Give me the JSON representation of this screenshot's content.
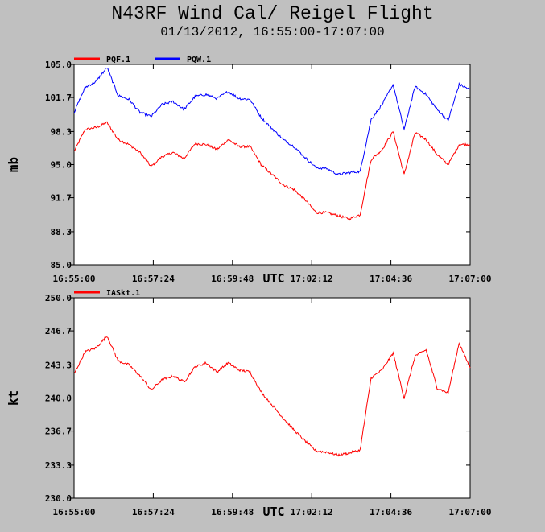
{
  "title": "N43RF Wind Cal/ Reigel Flight",
  "subtitle": "01/13/2012, 16:55:00-17:07:00",
  "colors": {
    "background": "#c0c0c0",
    "plot_bg": "#ffffff",
    "red": "#ff0000",
    "blue": "#0000ff"
  },
  "chart_data": [
    {
      "type": "line",
      "ylabel": "mb",
      "xlabel": "UTC",
      "ylim": [
        85.0,
        105.0
      ],
      "yticks": [
        "85.0",
        "88.3",
        "91.7",
        "95.0",
        "98.3",
        "101.7",
        "105.0"
      ],
      "xticks": [
        "16:55:00",
        "16:57:24",
        "16:59:48",
        "17:02:12",
        "17:04:36",
        "17:07:00"
      ],
      "x": [
        "16:55:00",
        "16:55:20",
        "16:55:40",
        "16:56:00",
        "16:56:20",
        "16:56:40",
        "16:57:00",
        "16:57:20",
        "16:57:40",
        "16:58:00",
        "16:58:20",
        "16:58:40",
        "16:59:00",
        "16:59:20",
        "16:59:40",
        "17:00:00",
        "17:00:20",
        "17:00:40",
        "17:01:00",
        "17:01:20",
        "17:01:40",
        "17:02:00",
        "17:02:20",
        "17:02:40",
        "17:03:00",
        "17:03:20",
        "17:03:40",
        "17:04:00",
        "17:04:20",
        "17:04:40",
        "17:05:00",
        "17:05:20",
        "17:05:40",
        "17:06:00",
        "17:06:20",
        "17:06:40",
        "17:07:00"
      ],
      "legend_placement": "top-left",
      "series": [
        {
          "name": "PQF.1",
          "color": "#ff0000",
          "values": [
            96.3,
            98.5,
            98.7,
            99.2,
            97.5,
            97.0,
            96.2,
            94.8,
            95.8,
            96.2,
            95.6,
            97.1,
            97.0,
            96.5,
            97.5,
            96.8,
            96.8,
            95.0,
            94.0,
            93.0,
            92.5,
            91.5,
            90.2,
            90.2,
            89.9,
            89.6,
            90.0,
            95.5,
            96.5,
            98.3,
            94.0,
            98.2,
            97.5,
            96.0,
            95.0,
            97.0,
            97.0
          ]
        },
        {
          "name": "PQW.1",
          "color": "#0000ff",
          "values": [
            100.2,
            102.7,
            103.3,
            104.7,
            101.9,
            101.5,
            100.2,
            99.8,
            101.0,
            101.3,
            100.5,
            101.8,
            102.0,
            101.6,
            102.3,
            101.6,
            101.5,
            99.7,
            98.6,
            97.5,
            96.8,
            95.7,
            94.7,
            94.6,
            94.0,
            94.2,
            94.3,
            99.5,
            101.0,
            103.0,
            98.5,
            102.8,
            102.0,
            100.5,
            99.4,
            103.0,
            102.5
          ]
        }
      ]
    },
    {
      "type": "line",
      "ylabel": "kt",
      "xlabel": "UTC",
      "ylim": [
        230.0,
        250.0
      ],
      "yticks": [
        "230.0",
        "233.3",
        "236.7",
        "240.0",
        "243.3",
        "246.7",
        "250.0"
      ],
      "xticks": [
        "16:55:00",
        "16:57:24",
        "16:59:48",
        "17:02:12",
        "17:04:36",
        "17:07:00"
      ],
      "x": [
        "16:55:00",
        "16:55:20",
        "16:55:40",
        "16:56:00",
        "16:56:20",
        "16:56:40",
        "16:57:00",
        "16:57:20",
        "16:57:40",
        "16:58:00",
        "16:58:20",
        "16:58:40",
        "16:59:00",
        "16:59:20",
        "16:59:40",
        "17:00:00",
        "17:00:20",
        "17:00:40",
        "17:01:00",
        "17:01:20",
        "17:01:40",
        "17:02:00",
        "17:02:20",
        "17:02:40",
        "17:03:00",
        "17:03:20",
        "17:03:40",
        "17:04:00",
        "17:04:20",
        "17:04:40",
        "17:05:00",
        "17:05:20",
        "17:05:40",
        "17:06:00",
        "17:06:20",
        "17:06:40",
        "17:07:00"
      ],
      "legend_placement": "top-left",
      "series": [
        {
          "name": "IASkt.1",
          "color": "#ff0000",
          "values": [
            242.4,
            244.6,
            245.0,
            246.2,
            243.7,
            243.3,
            242.2,
            240.8,
            241.8,
            242.2,
            241.6,
            243.1,
            243.5,
            242.6,
            243.5,
            242.8,
            242.6,
            240.6,
            239.3,
            238.0,
            236.8,
            235.7,
            234.7,
            234.6,
            234.3,
            234.5,
            234.8,
            242.0,
            242.8,
            244.5,
            240.0,
            244.2,
            244.8,
            241.0,
            240.5,
            245.5,
            243.0
          ]
        }
      ]
    }
  ]
}
